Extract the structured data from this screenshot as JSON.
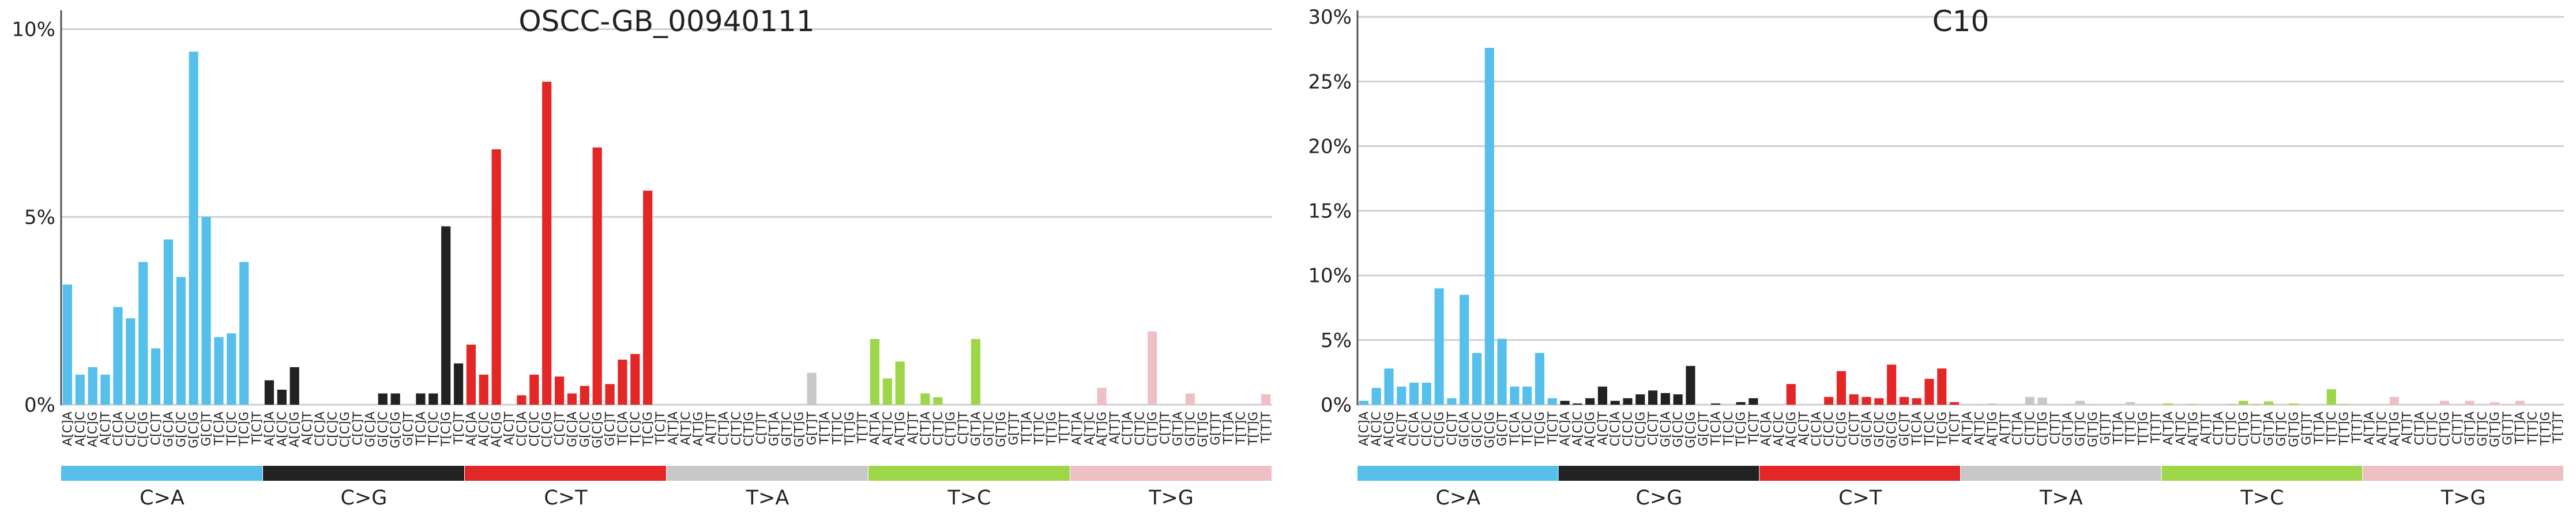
{
  "mutation_types": [
    "C>A",
    "C>G",
    "C>T",
    "T>A",
    "T>C",
    "T>G"
  ],
  "mutation_colors": [
    "#56bfec",
    "#222222",
    "#e32626",
    "#c8c8c8",
    "#9ed64a",
    "#eec0c4"
  ],
  "contexts": {
    "C": [
      "A[C]A",
      "A[C]C",
      "A[C]G",
      "A[C]T",
      "C[C]A",
      "C[C]C",
      "C[C]G",
      "C[C]T",
      "G[C]A",
      "G[C]C",
      "G[C]G",
      "G[C]T",
      "T[C]A",
      "T[C]C",
      "T[C]G",
      "T[C]T"
    ],
    "T": [
      "A[T]A",
      "A[T]C",
      "A[T]G",
      "A[T]T",
      "C[T]A",
      "C[T]C",
      "C[T]G",
      "C[T]T",
      "G[T]A",
      "G[T]C",
      "G[T]G",
      "G[T]T",
      "T[T]A",
      "T[T]C",
      "T[T]G",
      "T[T]T"
    ]
  },
  "chart_data": [
    {
      "type": "bar",
      "title": "OSCC-GB_00940111",
      "xlabel": "",
      "ylabel": "",
      "ylim": [
        0,
        10.5
      ],
      "yticks": [
        0,
        5,
        10
      ],
      "ytick_labels": [
        "0%",
        "5%",
        "10%"
      ],
      "grid": true,
      "values": [
        3.2,
        0.8,
        1.0,
        0.8,
        2.6,
        2.3,
        3.8,
        1.5,
        4.4,
        3.4,
        9.4,
        5.0,
        1.8,
        1.9,
        3.8,
        0,
        0.65,
        0.4,
        1.0,
        0,
        0,
        0,
        0,
        0,
        0,
        0.3,
        0.3,
        0,
        0.3,
        0.3,
        4.75,
        1.1,
        1.6,
        0.8,
        6.8,
        0,
        0.25,
        0.8,
        8.6,
        0.75,
        0.3,
        0.5,
        6.85,
        0.55,
        1.2,
        1.35,
        5.7,
        0,
        0,
        0,
        0,
        0,
        0,
        0,
        0,
        0,
        0,
        0,
        0,
        0.85,
        0,
        0,
        0,
        0,
        1.75,
        0.7,
        1.15,
        0,
        0.3,
        0.2,
        0,
        0,
        1.75,
        0,
        0,
        0,
        0,
        0,
        0,
        0,
        0,
        0,
        0.45,
        0,
        0,
        0,
        1.95,
        0,
        0,
        0.3,
        0,
        0,
        0,
        0,
        0,
        0.28
      ]
    },
    {
      "type": "bar",
      "title": "C10",
      "xlabel": "",
      "ylabel": "",
      "ylim": [
        0,
        30.5
      ],
      "yticks": [
        0,
        5,
        10,
        15,
        20,
        25,
        30
      ],
      "ytick_labels": [
        "0%",
        "5%",
        "10%",
        "15%",
        "20%",
        "25%",
        "30%"
      ],
      "grid": true,
      "values": [
        0.3,
        1.3,
        2.8,
        1.4,
        1.7,
        1.7,
        9.0,
        0.5,
        8.5,
        4.0,
        27.6,
        5.1,
        1.4,
        1.4,
        4.0,
        0.5,
        0.3,
        0.1,
        0.5,
        1.4,
        0.3,
        0.5,
        0.8,
        1.1,
        0.9,
        0.8,
        3.0,
        0,
        0.1,
        0,
        0.2,
        0.5,
        0,
        0,
        1.6,
        0,
        0,
        0.6,
        2.6,
        0.8,
        0.6,
        0.5,
        3.1,
        0.6,
        0.5,
        2.0,
        2.8,
        0.2,
        0.05,
        0.05,
        0.1,
        0,
        0,
        0.6,
        0.55,
        0.05,
        0.05,
        0.3,
        0.05,
        0,
        0,
        0.2,
        0.05,
        0,
        0.1,
        0,
        0.05,
        0,
        0,
        0.05,
        0.3,
        0.05,
        0.25,
        0,
        0.1,
        0,
        0,
        1.2,
        0.05,
        0,
        0,
        0.05,
        0.6,
        0.05,
        0,
        0,
        0.3,
        0.05,
        0.3,
        0,
        0.2,
        0.05,
        0.3,
        0,
        0.05,
        0
      ]
    }
  ]
}
